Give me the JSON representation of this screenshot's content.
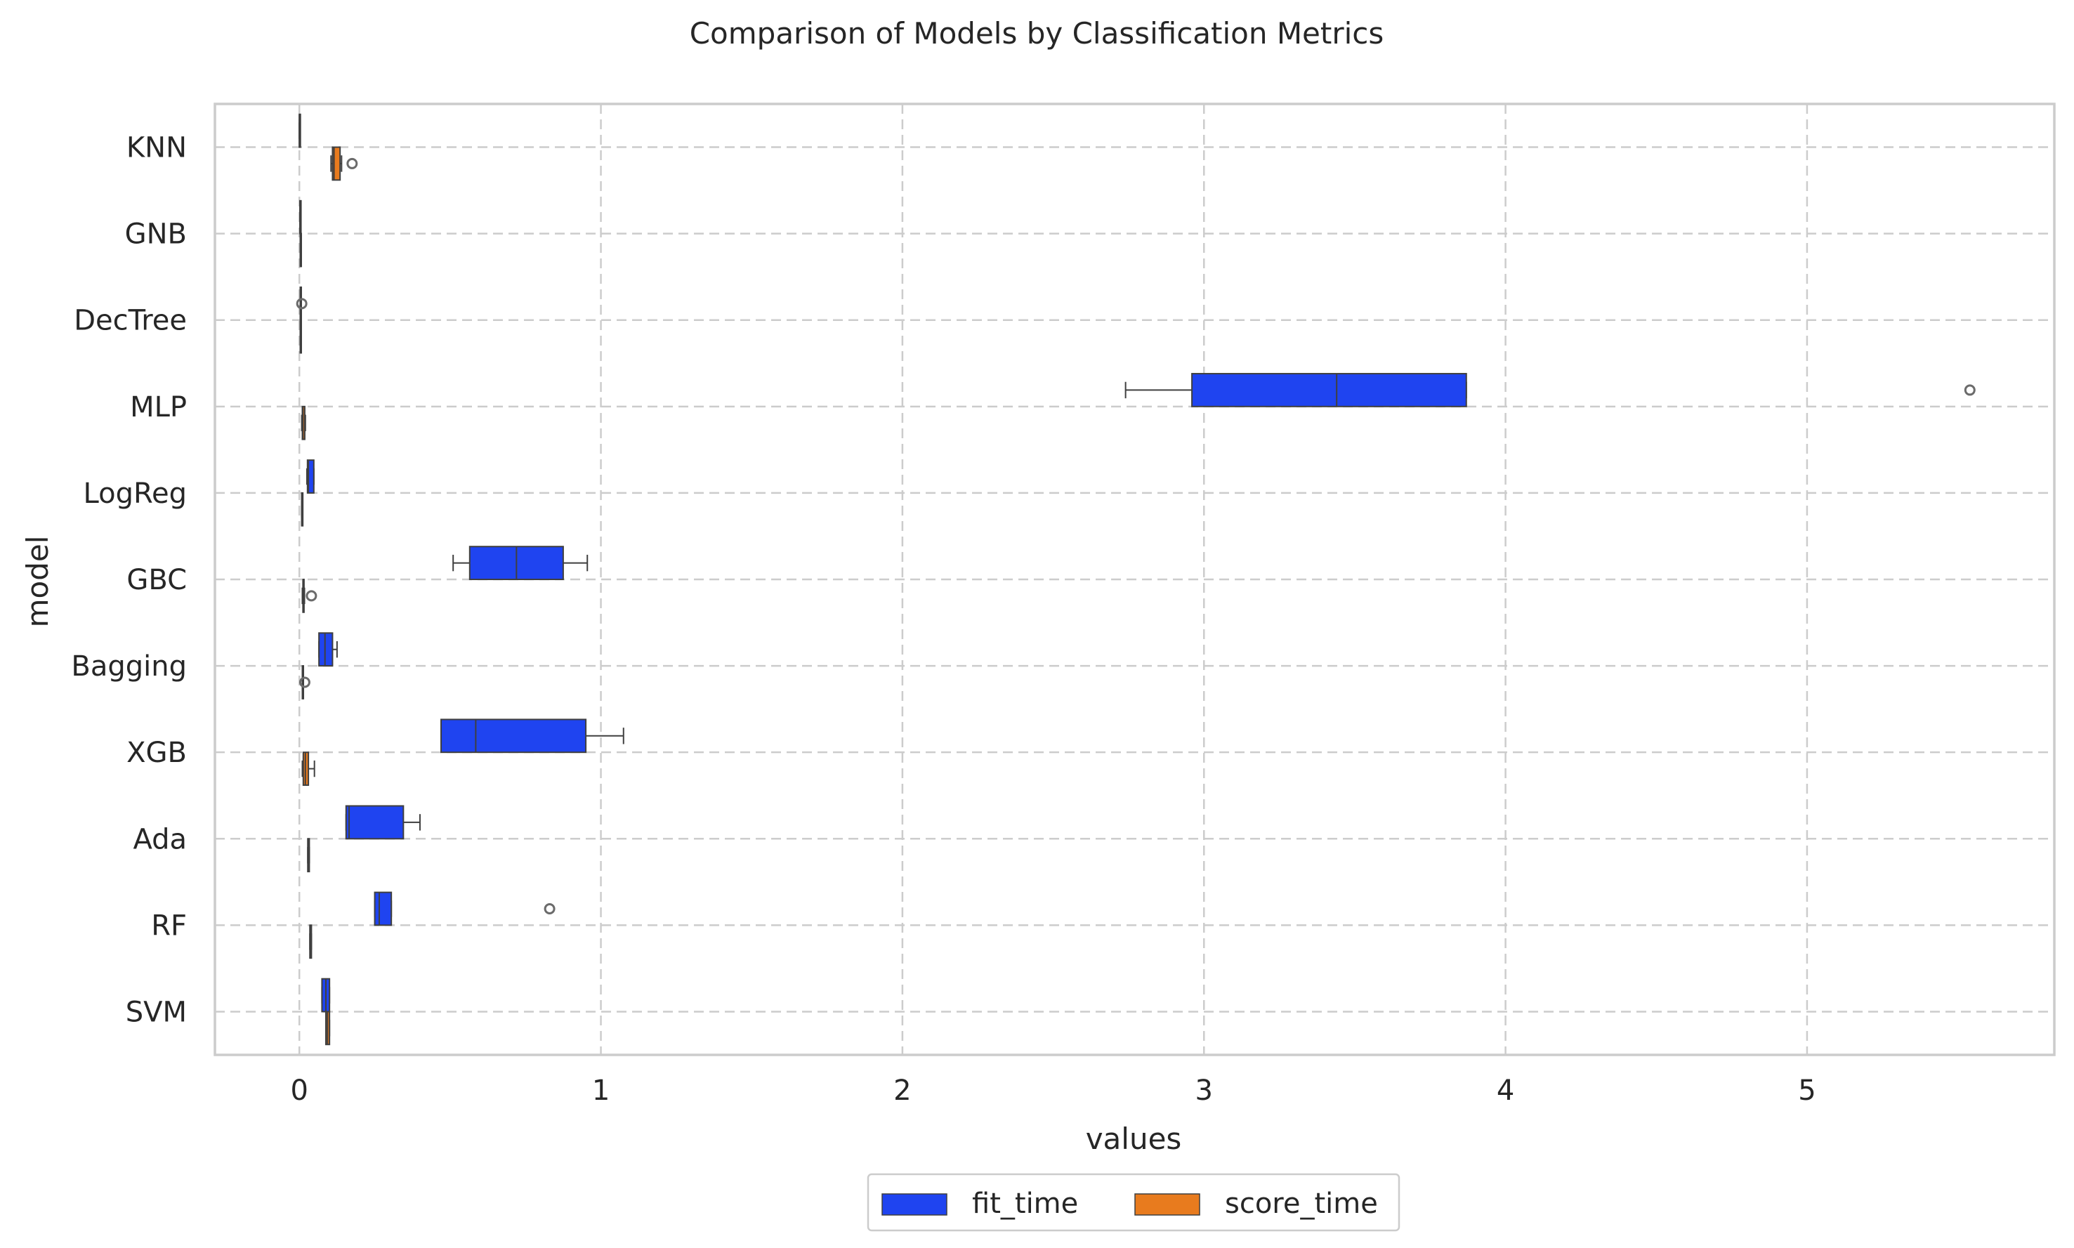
{
  "chart_data": {
    "type": "boxplot",
    "orientation": "horizontal",
    "title": "Comparison of Models by Classification Metrics",
    "xlabel": "values",
    "ylabel": "model",
    "xlim": [
      -0.28,
      5.82
    ],
    "xticks": [
      0,
      1,
      2,
      3,
      4,
      5
    ],
    "grid": true,
    "legend_position": "bottom-center",
    "categories": [
      "KNN",
      "GNB",
      "DecTree",
      "MLP",
      "LogReg",
      "GBC",
      "Bagging",
      "XGB",
      "Ada",
      "RF",
      "SVM"
    ],
    "series": [
      {
        "name": "fit_time",
        "color": "#1f44f0",
        "boxes": [
          {
            "whislo": 0.0,
            "q1": 0.0,
            "med": 0.0,
            "q3": 0.0,
            "whishi": 0.0,
            "fliers": []
          },
          {
            "whislo": 0.002,
            "q1": 0.002,
            "med": 0.002,
            "q3": 0.002,
            "whishi": 0.002,
            "fliers": []
          },
          {
            "whislo": 0.003,
            "q1": 0.003,
            "med": 0.003,
            "q3": 0.003,
            "whishi": 0.003,
            "fliers": [
              0.008
            ]
          },
          {
            "whislo": 2.74,
            "q1": 2.96,
            "med": 3.44,
            "q3": 3.87,
            "whishi": 3.87,
            "fliers": [
              5.54
            ]
          },
          {
            "whislo": 0.025,
            "q1": 0.027,
            "med": 0.03,
            "q3": 0.048,
            "whishi": 0.048,
            "fliers": []
          },
          {
            "whislo": 0.51,
            "q1": 0.565,
            "med": 0.72,
            "q3": 0.875,
            "whishi": 0.955,
            "fliers": []
          },
          {
            "whislo": 0.065,
            "q1": 0.065,
            "med": 0.085,
            "q3": 0.11,
            "whishi": 0.125,
            "fliers": []
          },
          {
            "whislo": 0.47,
            "q1": 0.47,
            "med": 0.585,
            "q3": 0.95,
            "whishi": 1.075,
            "fliers": []
          },
          {
            "whislo": 0.155,
            "q1": 0.155,
            "med": 0.165,
            "q3": 0.345,
            "whishi": 0.4,
            "fliers": []
          },
          {
            "whislo": 0.25,
            "q1": 0.25,
            "med": 0.265,
            "q3": 0.305,
            "whishi": 0.305,
            "fliers": [
              0.83
            ]
          },
          {
            "whislo": 0.075,
            "q1": 0.075,
            "med": 0.088,
            "q3": 0.1,
            "whishi": 0.1,
            "fliers": []
          }
        ]
      },
      {
        "name": "score_time",
        "color": "#e87b1e",
        "boxes": [
          {
            "whislo": 0.105,
            "q1": 0.11,
            "med": 0.115,
            "q3": 0.135,
            "whishi": 0.14,
            "fliers": [
              0.175
            ]
          },
          {
            "whislo": 0.003,
            "q1": 0.003,
            "med": 0.003,
            "q3": 0.003,
            "whishi": 0.003,
            "fliers": []
          },
          {
            "whislo": 0.003,
            "q1": 0.003,
            "med": 0.003,
            "q3": 0.003,
            "whishi": 0.003,
            "fliers": []
          },
          {
            "whislo": 0.008,
            "q1": 0.01,
            "med": 0.012,
            "q3": 0.018,
            "whishi": 0.02,
            "fliers": []
          },
          {
            "whislo": 0.008,
            "q1": 0.008,
            "med": 0.008,
            "q3": 0.008,
            "whishi": 0.008,
            "fliers": []
          },
          {
            "whislo": 0.01,
            "q1": 0.012,
            "med": 0.013,
            "q3": 0.015,
            "whishi": 0.017,
            "fliers": [
              0.04
            ]
          },
          {
            "whislo": 0.01,
            "q1": 0.01,
            "med": 0.012,
            "q3": 0.013,
            "whishi": 0.013,
            "fliers": [
              0.018
            ]
          },
          {
            "whislo": 0.01,
            "q1": 0.013,
            "med": 0.02,
            "q3": 0.03,
            "whishi": 0.05,
            "fliers": []
          },
          {
            "whislo": 0.028,
            "q1": 0.028,
            "med": 0.03,
            "q3": 0.033,
            "whishi": 0.033,
            "fliers": []
          },
          {
            "whislo": 0.035,
            "q1": 0.035,
            "med": 0.037,
            "q3": 0.04,
            "whishi": 0.04,
            "fliers": []
          },
          {
            "whislo": 0.088,
            "q1": 0.088,
            "med": 0.093,
            "q3": 0.1,
            "whishi": 0.1,
            "fliers": []
          }
        ]
      }
    ]
  }
}
